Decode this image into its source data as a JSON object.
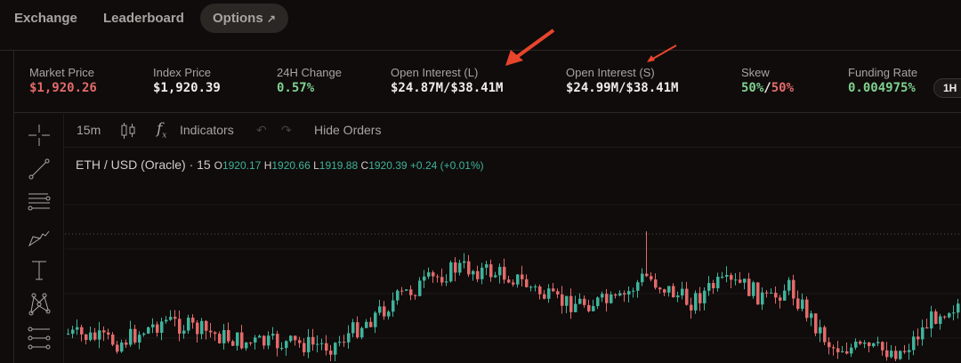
{
  "nav": {
    "items": [
      {
        "label": "Exchange"
      },
      {
        "label": "Leaderboard"
      },
      {
        "label": "Options",
        "icon": "external-link-icon",
        "active": true
      }
    ]
  },
  "stats": [
    {
      "label": "Market Price",
      "value": "$1,920.26",
      "color": "red"
    },
    {
      "label": "Index Price",
      "value": "$1,920.39"
    },
    {
      "label": "24H Change",
      "value": "0.57%",
      "color": "green"
    },
    {
      "label": "Open Interest (L)",
      "value": "$24.87M/$38.41M"
    },
    {
      "label": "Open Interest (S)",
      "value": "$24.99M/$38.41M"
    },
    {
      "label": "Skew",
      "value_long": "50%",
      "sep": "/",
      "value_short": "50%"
    },
    {
      "label": "Funding Rate",
      "value": "0.004975%",
      "color": "green"
    }
  ],
  "funding_period": "1H",
  "toolbar": {
    "interval": "15m",
    "indicators": "Indicators",
    "hide_orders": "Hide Orders"
  },
  "tools": [
    "crosshair-icon",
    "trend-line-icon",
    "fib-icon",
    "brush-icon",
    "text-icon",
    "pattern-icon",
    "prediction-icon"
  ],
  "legend": {
    "symbol": "ETH / USD (Oracle)",
    "sep": "·",
    "interval": "15",
    "o_label": "O",
    "o": "1920.17",
    "h_label": "H",
    "h": "1920.66",
    "l_label": "L",
    "l": "1919.88",
    "c_label": "C",
    "c": "1920.39",
    "change": "+0.24 (+0.01%)"
  },
  "colors": {
    "up": "#3fb39b",
    "down": "#e46a6a",
    "annotation": "#e8452c",
    "background": "#0f0c0b"
  }
}
